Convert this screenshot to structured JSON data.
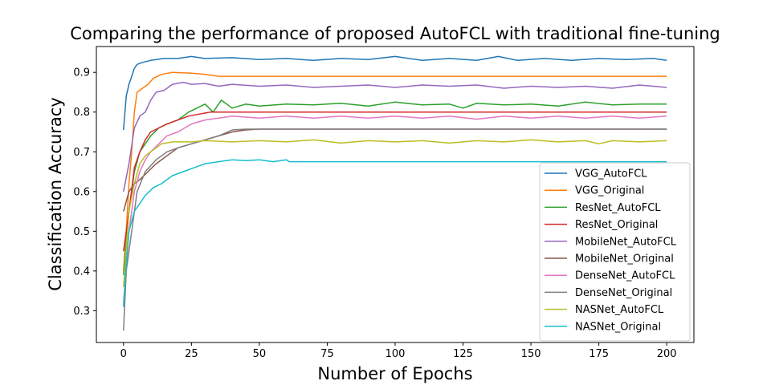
{
  "chart_data": {
    "type": "line",
    "title": "Comparing the performance of proposed AutoFCL with traditional fine-tuning",
    "xlabel": "Number of Epochs",
    "ylabel": "Classification Accuracy",
    "xlim": [
      -10,
      210
    ],
    "ylim": [
      0.22,
      0.965
    ],
    "xticks": [
      0,
      25,
      50,
      75,
      100,
      125,
      150,
      175,
      200
    ],
    "yticks": [
      0.3,
      0.4,
      0.5,
      0.6,
      0.7,
      0.8,
      0.9
    ],
    "ytick_labels": [
      "0.3",
      "0.4",
      "0.5",
      "0.6",
      "0.7",
      "0.8",
      "0.9"
    ],
    "grid": false,
    "legend_position": "lower-right",
    "series": [
      {
        "name": "VGG_AutoFCL",
        "color": "#1f77b4",
        "points": [
          [
            0,
            0.755
          ],
          [
            1,
            0.84
          ],
          [
            2,
            0.87
          ],
          [
            3,
            0.89
          ],
          [
            4,
            0.91
          ],
          [
            5,
            0.92
          ],
          [
            7,
            0.925
          ],
          [
            10,
            0.93
          ],
          [
            15,
            0.935
          ],
          [
            20,
            0.935
          ],
          [
            25,
            0.94
          ],
          [
            30,
            0.935
          ],
          [
            40,
            0.937
          ],
          [
            50,
            0.932
          ],
          [
            60,
            0.935
          ],
          [
            70,
            0.93
          ],
          [
            80,
            0.935
          ],
          [
            90,
            0.932
          ],
          [
            100,
            0.94
          ],
          [
            110,
            0.93
          ],
          [
            120,
            0.935
          ],
          [
            130,
            0.93
          ],
          [
            138,
            0.94
          ],
          [
            145,
            0.93
          ],
          [
            155,
            0.935
          ],
          [
            165,
            0.93
          ],
          [
            175,
            0.935
          ],
          [
            185,
            0.932
          ],
          [
            195,
            0.935
          ],
          [
            200,
            0.93
          ]
        ]
      },
      {
        "name": "VGG_Original",
        "color": "#ff7f0e",
        "points": [
          [
            0,
            0.4
          ],
          [
            1,
            0.5
          ],
          [
            2,
            0.62
          ],
          [
            3,
            0.7
          ],
          [
            4,
            0.8
          ],
          [
            5,
            0.85
          ],
          [
            7,
            0.86
          ],
          [
            9,
            0.87
          ],
          [
            11,
            0.885
          ],
          [
            14,
            0.895
          ],
          [
            18,
            0.9
          ],
          [
            25,
            0.898
          ],
          [
            30,
            0.895
          ],
          [
            35,
            0.89
          ],
          [
            50,
            0.89
          ],
          [
            100,
            0.89
          ],
          [
            150,
            0.89
          ],
          [
            200,
            0.89
          ]
        ]
      },
      {
        "name": "ResNet_AutoFCL",
        "color": "#2ca02c",
        "points": [
          [
            0,
            0.39
          ],
          [
            2,
            0.55
          ],
          [
            4,
            0.65
          ],
          [
            6,
            0.7
          ],
          [
            8,
            0.72
          ],
          [
            10,
            0.74
          ],
          [
            13,
            0.76
          ],
          [
            16,
            0.77
          ],
          [
            20,
            0.78
          ],
          [
            24,
            0.8
          ],
          [
            27,
            0.81
          ],
          [
            30,
            0.82
          ],
          [
            33,
            0.8
          ],
          [
            36,
            0.83
          ],
          [
            40,
            0.81
          ],
          [
            45,
            0.82
          ],
          [
            50,
            0.815
          ],
          [
            60,
            0.82
          ],
          [
            70,
            0.818
          ],
          [
            80,
            0.822
          ],
          [
            90,
            0.815
          ],
          [
            100,
            0.825
          ],
          [
            110,
            0.818
          ],
          [
            120,
            0.82
          ],
          [
            125,
            0.81
          ],
          [
            130,
            0.822
          ],
          [
            140,
            0.818
          ],
          [
            150,
            0.82
          ],
          [
            160,
            0.815
          ],
          [
            170,
            0.825
          ],
          [
            180,
            0.818
          ],
          [
            190,
            0.82
          ],
          [
            200,
            0.82
          ]
        ]
      },
      {
        "name": "ResNet_Original",
        "color": "#d62728",
        "points": [
          [
            0,
            0.45
          ],
          [
            2,
            0.55
          ],
          [
            4,
            0.66
          ],
          [
            6,
            0.7
          ],
          [
            8,
            0.73
          ],
          [
            10,
            0.75
          ],
          [
            13,
            0.76
          ],
          [
            16,
            0.77
          ],
          [
            20,
            0.78
          ],
          [
            24,
            0.79
          ],
          [
            28,
            0.795
          ],
          [
            32,
            0.8
          ],
          [
            40,
            0.8
          ],
          [
            60,
            0.8
          ],
          [
            100,
            0.8
          ],
          [
            150,
            0.8
          ],
          [
            200,
            0.8
          ]
        ]
      },
      {
        "name": "MobileNet_AutoFCL",
        "color": "#9467bd",
        "points": [
          [
            0,
            0.6
          ],
          [
            2,
            0.67
          ],
          [
            4,
            0.76
          ],
          [
            6,
            0.79
          ],
          [
            8,
            0.8
          ],
          [
            10,
            0.83
          ],
          [
            12,
            0.85
          ],
          [
            15,
            0.855
          ],
          [
            18,
            0.87
          ],
          [
            22,
            0.875
          ],
          [
            25,
            0.87
          ],
          [
            30,
            0.872
          ],
          [
            35,
            0.865
          ],
          [
            40,
            0.87
          ],
          [
            50,
            0.865
          ],
          [
            60,
            0.868
          ],
          [
            70,
            0.862
          ],
          [
            80,
            0.865
          ],
          [
            90,
            0.868
          ],
          [
            100,
            0.862
          ],
          [
            110,
            0.868
          ],
          [
            120,
            0.865
          ],
          [
            130,
            0.868
          ],
          [
            140,
            0.86
          ],
          [
            150,
            0.865
          ],
          [
            160,
            0.862
          ],
          [
            170,
            0.865
          ],
          [
            180,
            0.86
          ],
          [
            190,
            0.868
          ],
          [
            200,
            0.862
          ]
        ]
      },
      {
        "name": "MobileNet_Original",
        "color": "#8c564b",
        "points": [
          [
            0,
            0.55
          ],
          [
            2,
            0.6
          ],
          [
            4,
            0.62
          ],
          [
            6,
            0.63
          ],
          [
            9,
            0.65
          ],
          [
            12,
            0.67
          ],
          [
            16,
            0.69
          ],
          [
            20,
            0.71
          ],
          [
            25,
            0.72
          ],
          [
            30,
            0.73
          ],
          [
            35,
            0.74
          ],
          [
            40,
            0.75
          ],
          [
            45,
            0.755
          ],
          [
            50,
            0.757
          ],
          [
            100,
            0.757
          ],
          [
            150,
            0.757
          ],
          [
            200,
            0.757
          ]
        ]
      },
      {
        "name": "DenseNet_AutoFCL",
        "color": "#e377c2",
        "points": [
          [
            0,
            0.32
          ],
          [
            2,
            0.5
          ],
          [
            4,
            0.6
          ],
          [
            6,
            0.65
          ],
          [
            8,
            0.68
          ],
          [
            10,
            0.7
          ],
          [
            13,
            0.72
          ],
          [
            16,
            0.74
          ],
          [
            20,
            0.75
          ],
          [
            25,
            0.77
          ],
          [
            30,
            0.78
          ],
          [
            35,
            0.785
          ],
          [
            40,
            0.79
          ],
          [
            50,
            0.785
          ],
          [
            60,
            0.79
          ],
          [
            70,
            0.785
          ],
          [
            80,
            0.79
          ],
          [
            90,
            0.785
          ],
          [
            100,
            0.79
          ],
          [
            110,
            0.785
          ],
          [
            120,
            0.79
          ],
          [
            130,
            0.782
          ],
          [
            140,
            0.79
          ],
          [
            150,
            0.785
          ],
          [
            160,
            0.79
          ],
          [
            170,
            0.785
          ],
          [
            180,
            0.79
          ],
          [
            190,
            0.785
          ],
          [
            200,
            0.79
          ]
        ]
      },
      {
        "name": "DenseNet_Original",
        "color": "#7f7f7f",
        "points": [
          [
            0,
            0.25
          ],
          [
            1,
            0.4
          ],
          [
            2,
            0.45
          ],
          [
            3,
            0.5
          ],
          [
            5,
            0.6
          ],
          [
            8,
            0.65
          ],
          [
            12,
            0.68
          ],
          [
            16,
            0.7
          ],
          [
            20,
            0.71
          ],
          [
            25,
            0.72
          ],
          [
            30,
            0.73
          ],
          [
            35,
            0.74
          ],
          [
            40,
            0.755
          ],
          [
            45,
            0.757
          ],
          [
            50,
            0.757
          ],
          [
            100,
            0.757
          ],
          [
            150,
            0.757
          ],
          [
            200,
            0.757
          ]
        ]
      },
      {
        "name": "NASNet_AutoFCL",
        "color": "#bcbd22",
        "points": [
          [
            0,
            0.36
          ],
          [
            2,
            0.55
          ],
          [
            4,
            0.62
          ],
          [
            6,
            0.67
          ],
          [
            8,
            0.69
          ],
          [
            10,
            0.7
          ],
          [
            14,
            0.72
          ],
          [
            18,
            0.725
          ],
          [
            25,
            0.725
          ],
          [
            30,
            0.728
          ],
          [
            40,
            0.725
          ],
          [
            50,
            0.728
          ],
          [
            60,
            0.725
          ],
          [
            70,
            0.73
          ],
          [
            80,
            0.722
          ],
          [
            90,
            0.728
          ],
          [
            100,
            0.725
          ],
          [
            110,
            0.728
          ],
          [
            120,
            0.722
          ],
          [
            130,
            0.728
          ],
          [
            140,
            0.725
          ],
          [
            150,
            0.73
          ],
          [
            160,
            0.725
          ],
          [
            170,
            0.728
          ],
          [
            175,
            0.72
          ],
          [
            180,
            0.728
          ],
          [
            190,
            0.725
          ],
          [
            200,
            0.728
          ]
        ]
      },
      {
        "name": "NASNet_Original",
        "color": "#17becf",
        "points": [
          [
            0,
            0.31
          ],
          [
            1,
            0.42
          ],
          [
            2,
            0.5
          ],
          [
            4,
            0.55
          ],
          [
            6,
            0.57
          ],
          [
            8,
            0.59
          ],
          [
            11,
            0.61
          ],
          [
            14,
            0.62
          ],
          [
            18,
            0.64
          ],
          [
            22,
            0.65
          ],
          [
            26,
            0.66
          ],
          [
            30,
            0.67
          ],
          [
            35,
            0.675
          ],
          [
            40,
            0.68
          ],
          [
            45,
            0.678
          ],
          [
            50,
            0.68
          ],
          [
            55,
            0.675
          ],
          [
            60,
            0.68
          ],
          [
            61,
            0.675
          ],
          [
            100,
            0.675
          ],
          [
            150,
            0.675
          ],
          [
            200,
            0.675
          ]
        ]
      }
    ]
  }
}
